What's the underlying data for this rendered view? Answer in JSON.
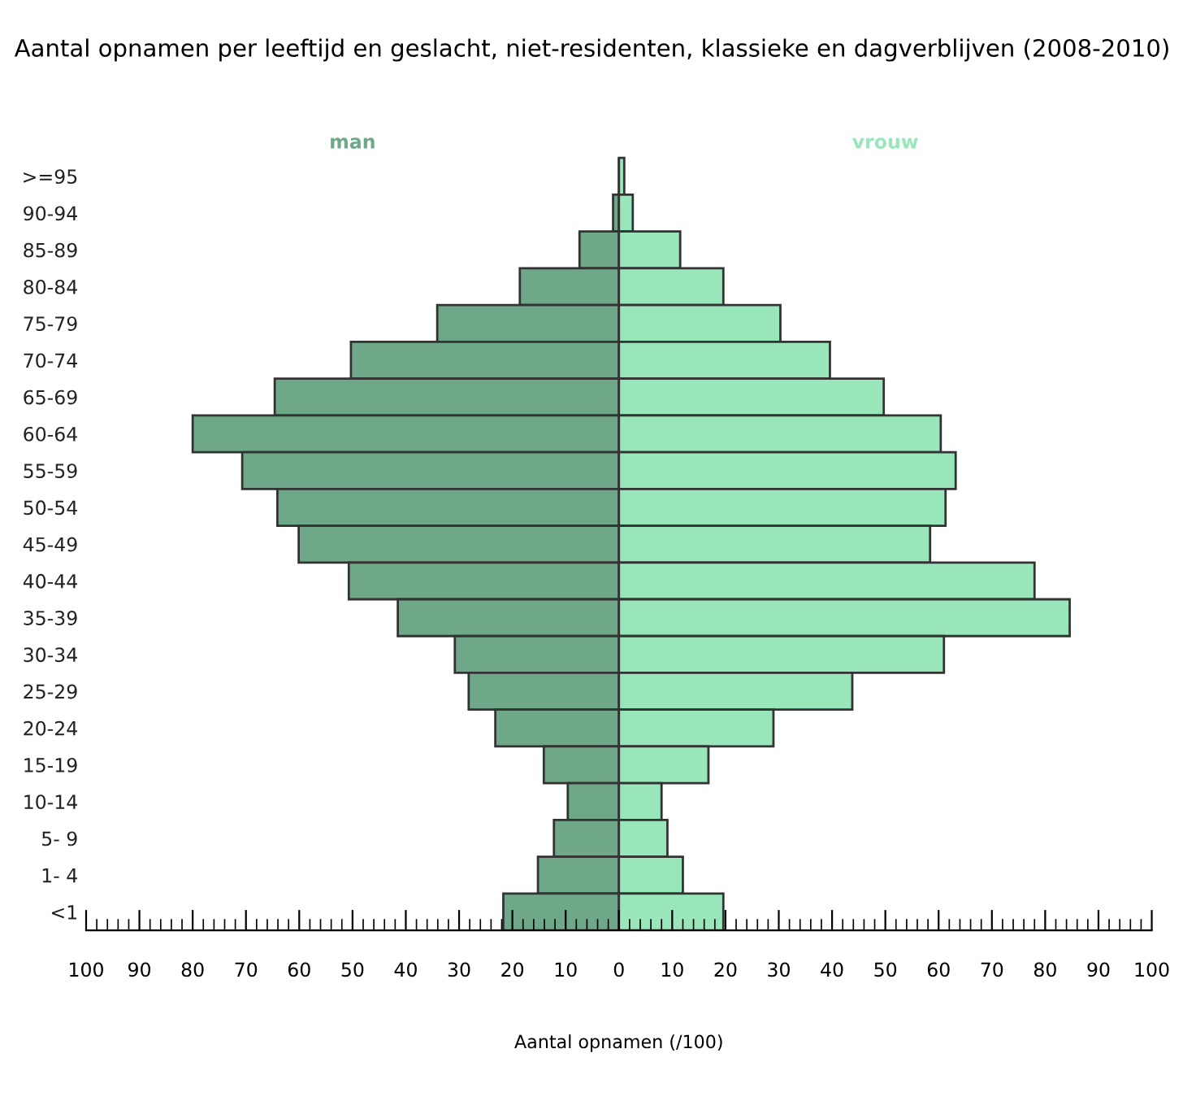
{
  "chart_data": {
    "type": "bar",
    "orientation": "horizontal",
    "stacked": true,
    "title": "Aantal opnamen per leeftijd en geslacht, niet-residenten, klassieke en dagverblijven (2008-2010)",
    "xlabel": "Aantal opnamen (/100)",
    "categories": [
      ">=95",
      "90-94",
      "85-89",
      "80-84",
      "75-79",
      "70-74",
      "65-69",
      "60-64",
      "55-59",
      "50-54",
      "45-49",
      "40-44",
      "35-39",
      "30-34",
      "25-29",
      "20-24",
      "15-19",
      "10-14",
      "5- 9",
      "1- 4",
      "<1"
    ],
    "series": [
      {
        "name": "man",
        "color": "#6fa888",
        "values": [
          null,
          -1.1,
          -7.4,
          -18.6,
          -34.1,
          -50.3,
          -64.6,
          -80.0,
          -70.7,
          -64.1,
          -60.1,
          -50.7,
          -41.5,
          -30.8,
          -28.2,
          -23.2,
          -14.1,
          -9.6,
          -12.2,
          -15.2,
          -21.7
        ]
      },
      {
        "name": "vrouw",
        "color": "#99e6bb",
        "values": [
          1.0,
          2.6,
          11.5,
          19.6,
          30.3,
          39.6,
          49.7,
          60.4,
          63.2,
          61.3,
          58.4,
          78.0,
          84.6,
          61.0,
          43.8,
          29.0,
          16.8,
          8.0,
          9.1,
          12.0,
          19.6
        ]
      }
    ],
    "xlim": [
      -100,
      100
    ],
    "xticks": [
      {
        "value": -100,
        "label": "100"
      },
      {
        "value": -90,
        "label": "90"
      },
      {
        "value": -80,
        "label": "80"
      },
      {
        "value": -70,
        "label": "70"
      },
      {
        "value": -60,
        "label": "60"
      },
      {
        "value": -50,
        "label": "50"
      },
      {
        "value": -40,
        "label": "40"
      },
      {
        "value": -30,
        "label": "30"
      },
      {
        "value": -20,
        "label": "20"
      },
      {
        "value": -10,
        "label": "10"
      },
      0,
      10,
      20,
      30,
      40,
      50,
      60,
      70,
      80,
      90,
      100,
      {
        "value": -98,
        "label": null
      },
      {
        "value": -96,
        "label": null
      },
      {
        "value": -94,
        "label": null
      },
      {
        "value": -92,
        "label": null
      },
      {
        "value": -88,
        "label": null
      },
      {
        "value": -86,
        "label": null
      },
      {
        "value": -84,
        "label": null
      },
      {
        "value": -82,
        "label": null
      },
      {
        "value": -78,
        "label": null
      },
      {
        "value": -76,
        "label": null
      },
      {
        "value": -74,
        "label": null
      },
      {
        "value": -72,
        "label": null
      },
      {
        "value": -68,
        "label": null
      },
      {
        "value": -66,
        "label": null
      },
      {
        "value": -64,
        "label": null
      },
      {
        "value": -62,
        "label": null
      },
      {
        "value": -58,
        "label": null
      },
      {
        "value": -56,
        "label": null
      },
      {
        "value": -54,
        "label": null
      },
      {
        "value": -52,
        "label": null
      },
      {
        "value": -48,
        "label": null
      },
      {
        "value": -46,
        "label": null
      },
      {
        "value": -44,
        "label": null
      },
      {
        "value": -42,
        "label": null
      },
      {
        "value": -38,
        "label": null
      },
      {
        "value": -36,
        "label": null
      },
      {
        "value": -34,
        "label": null
      },
      {
        "value": -32,
        "label": null
      },
      {
        "value": -28,
        "label": null
      },
      {
        "value": -26,
        "label": null
      },
      {
        "value": -24,
        "label": null
      },
      {
        "value": -22,
        "label": null
      },
      {
        "value": -18,
        "label": null
      },
      {
        "value": -16,
        "label": null
      },
      {
        "value": -14,
        "label": null
      },
      {
        "value": -12,
        "label": null
      },
      {
        "value": -8,
        "label": null
      },
      {
        "value": -6,
        "label": null
      },
      {
        "value": -4,
        "label": null
      },
      {
        "value": -2,
        "label": null
      },
      {
        "value": 2,
        "label": null
      },
      {
        "value": 4,
        "label": null
      },
      {
        "value": 6,
        "label": null
      },
      {
        "value": 8,
        "label": null
      },
      {
        "value": 12,
        "label": null
      },
      {
        "value": 14,
        "label": null
      },
      {
        "value": 16,
        "label": null
      },
      {
        "value": 18,
        "label": null
      },
      {
        "value": 22,
        "label": null
      },
      {
        "value": 24,
        "label": null
      },
      {
        "value": 26,
        "label": null
      },
      {
        "value": 28,
        "label": null
      },
      {
        "value": 32,
        "label": null
      },
      {
        "value": 34,
        "label": null
      },
      {
        "value": 36,
        "label": null
      },
      {
        "value": 38,
        "label": null
      },
      {
        "value": 42,
        "label": null
      },
      {
        "value": 44,
        "label": null
      },
      {
        "value": 46,
        "label": null
      },
      {
        "value": 48,
        "label": null
      },
      {
        "value": 52,
        "label": null
      },
      {
        "value": 54,
        "label": null
      },
      {
        "value": 56,
        "label": null
      },
      {
        "value": 58,
        "label": null
      },
      {
        "value": 62,
        "label": null
      },
      {
        "value": 64,
        "label": null
      },
      {
        "value": 66,
        "label": null
      },
      {
        "value": 68,
        "label": null
      },
      {
        "value": 72,
        "label": null
      },
      {
        "value": 74,
        "label": null
      },
      {
        "value": 76,
        "label": null
      },
      {
        "value": 78,
        "label": null
      },
      {
        "value": 82,
        "label": null
      },
      {
        "value": 84,
        "label": null
      },
      {
        "value": 86,
        "label": null
      },
      {
        "value": 88,
        "label": null
      },
      {
        "value": 92,
        "label": null
      },
      {
        "value": 94,
        "label": null
      },
      {
        "value": 96,
        "label": null
      },
      {
        "value": 98,
        "label": null
      }
    ],
    "grid": false,
    "legend": false
  }
}
